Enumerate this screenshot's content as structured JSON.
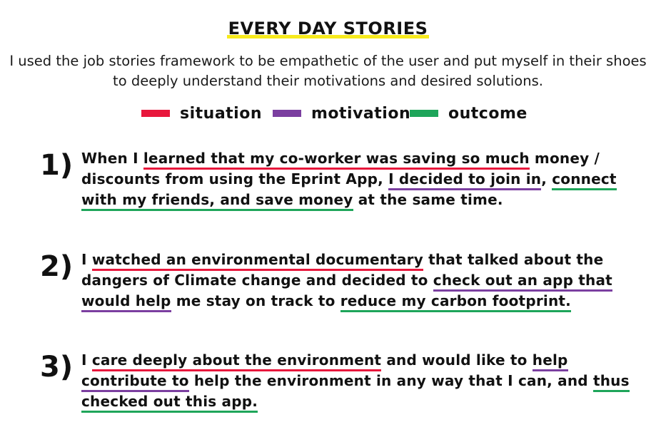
{
  "title": "EVERY DAY STORIES",
  "intro": "I used the job stories framework to be empathetic of the user and put myself in their shoes to deeply understand their motivations and desired solutions.",
  "colors": {
    "situation": "#e8173c",
    "motivation": "#7b3fa0",
    "outcome": "#1ea55a",
    "title_highlight": "#f7ea1c"
  },
  "legend": [
    {
      "label": "situation",
      "color": "#e8173c"
    },
    {
      "label": "motivation",
      "color": "#7b3fa0"
    },
    {
      "label": "outcome",
      "color": "#1ea55a"
    }
  ],
  "stories": [
    {
      "number": "1)",
      "segments": [
        {
          "text": "When I ",
          "type": "plain"
        },
        {
          "text": "learned that my co-worker was saving so much",
          "type": "situation"
        },
        {
          "text": " money / discounts from using the Eprint App, ",
          "type": "plain"
        },
        {
          "text": "I decided to join in",
          "type": "motivation"
        },
        {
          "text": ", ",
          "type": "plain"
        },
        {
          "text": "connect with my friends, and save money",
          "type": "outcome"
        },
        {
          "text": " at the same time.",
          "type": "plain"
        }
      ]
    },
    {
      "number": "2)",
      "segments": [
        {
          "text": "I ",
          "type": "plain"
        },
        {
          "text": "watched an environmental documentary",
          "type": "situation"
        },
        {
          "text": " that talked about the dangers of Climate change and decided to ",
          "type": "plain"
        },
        {
          "text": "check out an app that would help",
          "type": "motivation"
        },
        {
          "text": " me stay on track to ",
          "type": "plain"
        },
        {
          "text": "reduce my carbon footprint.",
          "type": "outcome"
        }
      ]
    },
    {
      "number": "3)",
      "segments": [
        {
          "text": "I ",
          "type": "plain"
        },
        {
          "text": "care deeply about the environment",
          "type": "situation"
        },
        {
          "text": " and would like to ",
          "type": "plain"
        },
        {
          "text": "help contribute to",
          "type": "motivation"
        },
        {
          "text": " help the environment in any way that I can, and ",
          "type": "plain"
        },
        {
          "text": "thus checked out this app.",
          "type": "outcome"
        }
      ]
    }
  ]
}
